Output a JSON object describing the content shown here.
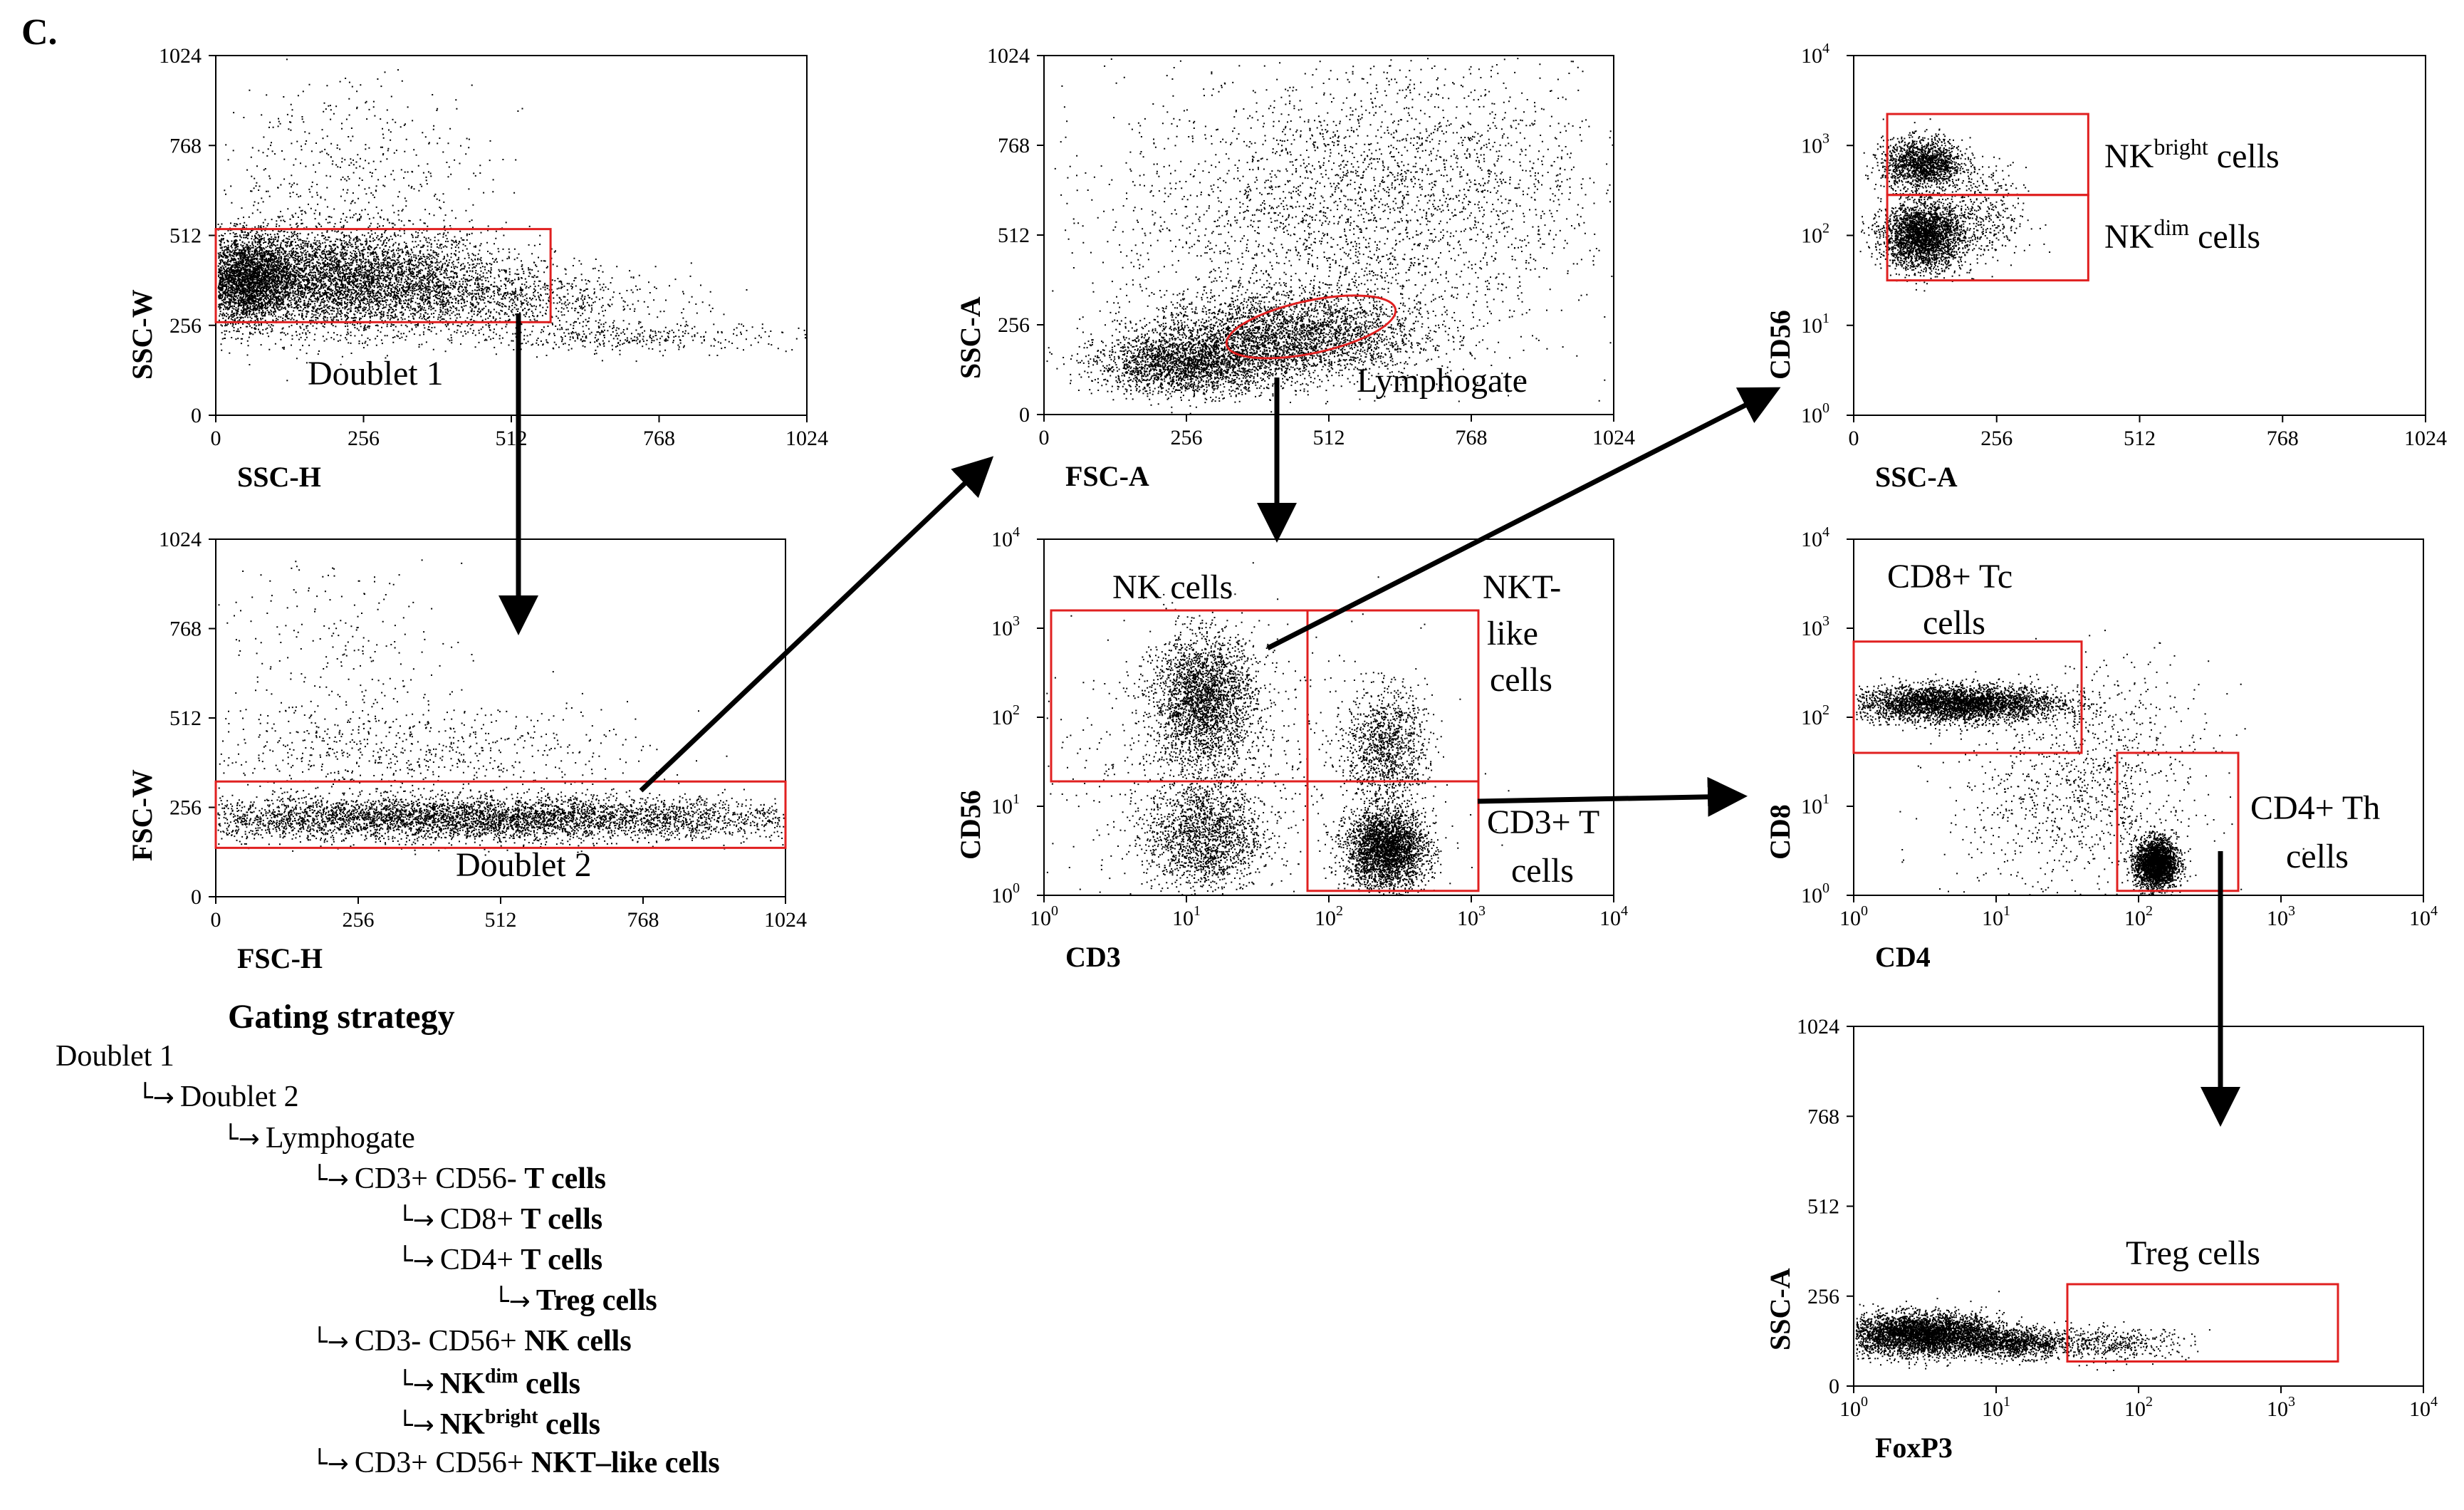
{
  "panel_letter": "C.",
  "chart_data": [
    {
      "id": "p1",
      "type": "scatter",
      "xlabel": "SSC-H",
      "ylabel": "SSC-W",
      "xscale": "linear",
      "yscale": "linear",
      "xlim": [
        0,
        1024
      ],
      "ylim": [
        0,
        1024
      ],
      "xticks": [
        "0",
        "256",
        "512",
        "768",
        "1024"
      ],
      "yticks": [
        "0",
        "256",
        "512",
        "768",
        "1024"
      ],
      "gates": [
        {
          "shape": "rect",
          "x": [
            0,
            580
          ],
          "y": [
            265,
            530
          ],
          "label": "Doublet 1"
        }
      ]
    },
    {
      "id": "p2",
      "type": "scatter",
      "xlabel": "FSC-H",
      "ylabel": "FSC-W",
      "xscale": "linear",
      "yscale": "linear",
      "xlim": [
        0,
        1024
      ],
      "ylim": [
        0,
        1024
      ],
      "xticks": [
        "0",
        "256",
        "512",
        "768",
        "1024"
      ],
      "yticks": [
        "0",
        "256",
        "512",
        "768",
        "1024"
      ],
      "gates": [
        {
          "shape": "rect",
          "x": [
            0,
            1024
          ],
          "y": [
            140,
            330
          ],
          "label": "Doublet 2"
        }
      ]
    },
    {
      "id": "p3",
      "type": "scatter",
      "xlabel": "FSC-A",
      "ylabel": "SSC-A",
      "xscale": "linear",
      "yscale": "linear",
      "xlim": [
        0,
        1024
      ],
      "ylim": [
        0,
        1024
      ],
      "xticks": [
        "0",
        "256",
        "512",
        "768",
        "1024"
      ],
      "yticks": [
        "0",
        "256",
        "512",
        "768",
        "1024"
      ],
      "gates": [
        {
          "shape": "ellipse",
          "cx": 480,
          "cy": 250,
          "rx": 155,
          "ry": 75,
          "label": "Lymphogate"
        }
      ]
    },
    {
      "id": "p4",
      "type": "scatter",
      "xlabel": "CD3",
      "ylabel": "CD56",
      "xscale": "log",
      "yscale": "log",
      "xlim": [
        0,
        4
      ],
      "ylim": [
        0,
        4
      ],
      "gates": [
        {
          "shape": "rect",
          "x": [
            0.05,
            1.85
          ],
          "y": [
            1.28,
            3.2
          ],
          "label": "NK cells"
        },
        {
          "shape": "rect",
          "x": [
            1.85,
            3.05
          ],
          "y": [
            1.28,
            3.2
          ],
          "label": "NKT-like cells"
        },
        {
          "shape": "rect",
          "x": [
            1.85,
            3.05
          ],
          "y": [
            0.05,
            1.28
          ],
          "label": "CD3+ T cells"
        }
      ]
    },
    {
      "id": "p5",
      "type": "scatter",
      "xlabel": "SSC-A",
      "ylabel": "CD56",
      "xscale": "linear",
      "yscale": "log",
      "xlim": [
        0,
        1024
      ],
      "ylim": [
        0,
        4
      ],
      "xticks": [
        "0",
        "256",
        "512",
        "768",
        "1024"
      ],
      "gates": [
        {
          "shape": "rect",
          "x": [
            60,
            420
          ],
          "y": [
            2.45,
            3.35
          ],
          "label": "NKbright cells"
        },
        {
          "shape": "rect",
          "x": [
            60,
            420
          ],
          "y": [
            1.5,
            2.45
          ],
          "label": "NKdim cells"
        }
      ]
    },
    {
      "id": "p6",
      "type": "scatter",
      "xlabel": "CD4",
      "ylabel": "CD8",
      "xscale": "log",
      "yscale": "log",
      "xlim": [
        0,
        4
      ],
      "ylim": [
        0,
        4
      ],
      "gates": [
        {
          "shape": "rect",
          "x": [
            0,
            1.6
          ],
          "y": [
            1.6,
            2.85
          ],
          "label": "CD8+ Tc cells"
        },
        {
          "shape": "rect",
          "x": [
            1.85,
            2.7
          ],
          "y": [
            0.05,
            1.6
          ],
          "label": "CD4+ Th cells"
        }
      ]
    },
    {
      "id": "p7",
      "type": "scatter",
      "xlabel": "FoxP3",
      "ylabel": "SSC-A",
      "xscale": "log",
      "yscale": "linear",
      "xlim": [
        0,
        4
      ],
      "ylim": [
        0,
        1024
      ],
      "yticks": [
        "0",
        "256",
        "512",
        "768",
        "1024"
      ],
      "gates": [
        {
          "shape": "rect",
          "x": [
            1.5,
            3.4
          ],
          "y": [
            70,
            290
          ],
          "label": "Treg cells"
        }
      ]
    }
  ],
  "gate_labels": {
    "doublet1": "Doublet 1",
    "doublet2": "Doublet 2",
    "lymphogate": "Lymphogate",
    "nk_cells": "NK cells",
    "nkt_line1": "NKT-",
    "nkt_line2": "like",
    "nkt_line3": "cells",
    "cd3t_line1": "CD3+ T",
    "cd3t_line2": "cells",
    "nk_bright_base": "NK",
    "nk_bright_sup": "bright",
    "nk_dim_base": "NK",
    "nk_dim_sup": "dim",
    "cells_suffix": " cells",
    "cd8tc_line1": "CD8+ Tc",
    "cd8tc_line2": "cells",
    "cd4th_line1": "CD4+ Th",
    "cd4th_line2": "cells",
    "treg": "Treg cells"
  },
  "log_tick": {
    "base": "10",
    "exps": [
      "0",
      "1",
      "2",
      "3",
      "4"
    ]
  },
  "gating_strategy": {
    "title": "Gating strategy",
    "items": [
      {
        "pre": "Doublet 1",
        "bold": "",
        "sup": "",
        "post": ""
      },
      {
        "pre": "Doublet 2",
        "bold": "",
        "sup": "",
        "post": ""
      },
      {
        "pre": "Lymphogate",
        "bold": "",
        "sup": "",
        "post": ""
      },
      {
        "pre": "CD3+ CD56- ",
        "bold": "T cells",
        "sup": "",
        "post": ""
      },
      {
        "pre": "CD8+ ",
        "bold": "T cells",
        "sup": "",
        "post": ""
      },
      {
        "pre": "CD4+ ",
        "bold": "T cells",
        "sup": "",
        "post": ""
      },
      {
        "pre": "",
        "bold": "Treg cells",
        "sup": "",
        "post": ""
      },
      {
        "pre": "CD3- CD56+ ",
        "bold": "NK cells",
        "sup": "",
        "post": ""
      },
      {
        "pre": "",
        "bold": "NK",
        "sup": "dim",
        "post": " cells"
      },
      {
        "pre": "",
        "bold": "NK",
        "sup": "bright",
        "post": " cells"
      },
      {
        "pre": "CD3+ CD56+ ",
        "bold": "NKT–like cells",
        "sup": "",
        "post": ""
      }
    ]
  }
}
